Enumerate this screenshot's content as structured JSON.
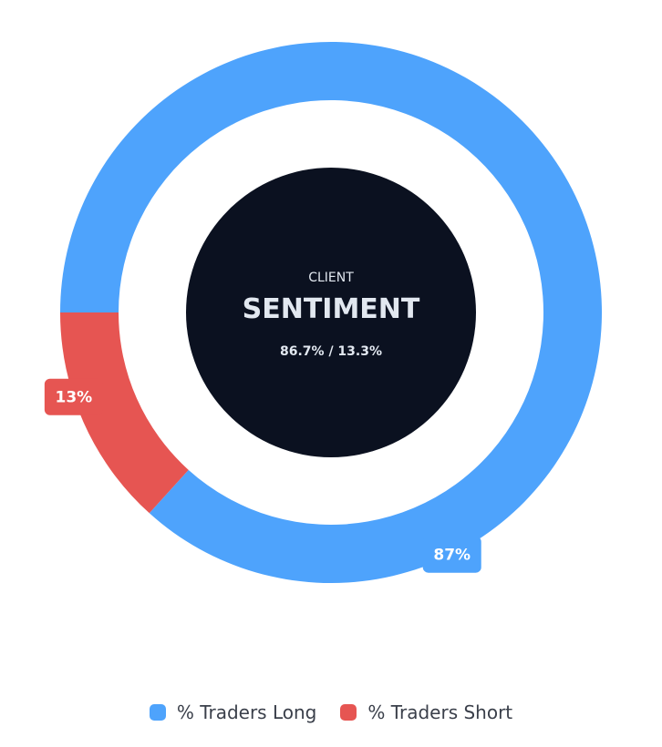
{
  "chart_data": {
    "type": "pie",
    "categories": [
      "% Traders Long",
      "% Traders Short"
    ],
    "values": [
      86.7,
      13.3
    ],
    "data_labels": [
      "87%",
      "13%"
    ],
    "colors": [
      "#4ea3fc",
      "#e65552"
    ],
    "legend_position": "bottom",
    "center": {
      "subtitle": "CLIENT",
      "title": "SENTIMENT",
      "detail": "86.7% / 13.3%"
    }
  },
  "theme": {
    "center_fill": "#0b1120",
    "center_text": "#e2e8f0",
    "label_text": "#ffffff"
  },
  "legend": {
    "items": [
      {
        "label": "% Traders Long",
        "color": "#4ea3fc"
      },
      {
        "label": "% Traders Short",
        "color": "#e65552"
      }
    ]
  }
}
